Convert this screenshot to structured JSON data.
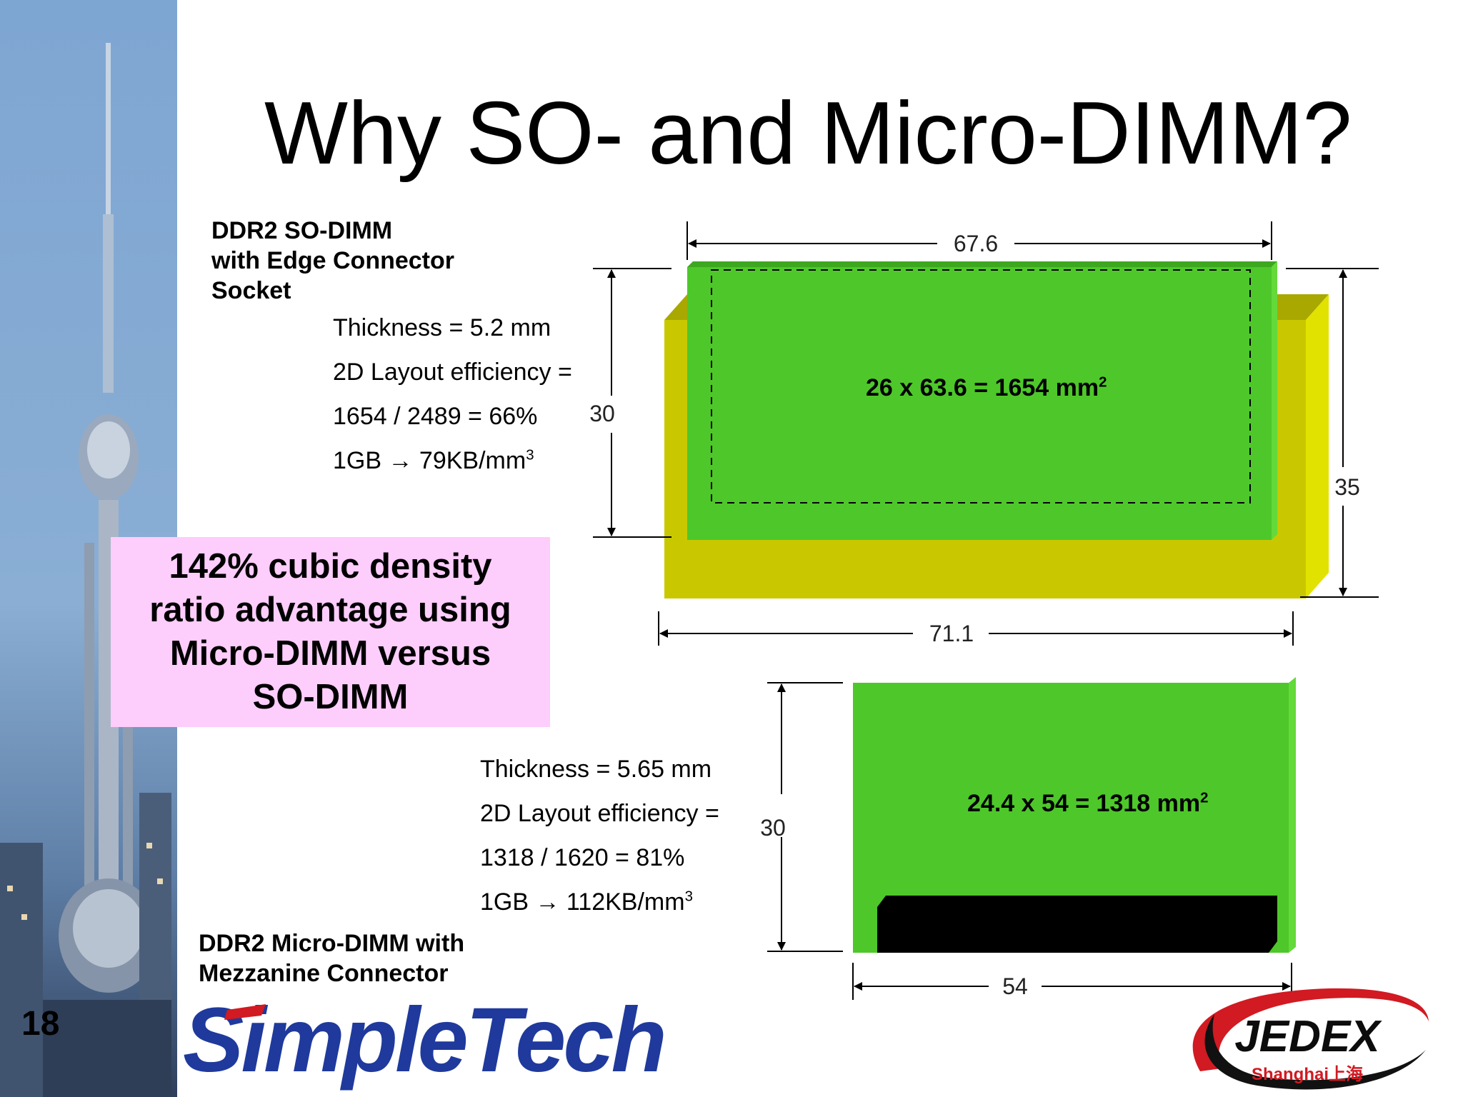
{
  "slide": {
    "title": "Why SO- and Micro-DIMM?",
    "page_number": "18"
  },
  "so_dimm": {
    "label_lines": [
      "DDR2 SO-DIMM",
      "with Edge Connector",
      "Socket"
    ],
    "specs": [
      {
        "text": "Thickness = 5.2 mm",
        "sup": ""
      },
      {
        "text": "2D Layout efficiency =",
        "sup": ""
      },
      {
        "text": "1654 / 2489 = 66%",
        "sup": ""
      },
      {
        "text": "1GB → 79KB/mm",
        "sup": "3"
      }
    ],
    "area_text": "26 x 63.6 = 1654 mm",
    "area_sup": "2",
    "dim_top": "67.6",
    "dim_left": "30",
    "dim_right": "35",
    "dim_bottom": "71.1"
  },
  "micro_dimm": {
    "label_lines": [
      "DDR2 Micro-DIMM with",
      "Mezzanine Connector"
    ],
    "specs": [
      {
        "text": "Thickness = 5.65 mm",
        "sup": ""
      },
      {
        "text": "2D Layout efficiency =",
        "sup": ""
      },
      {
        "text": "1318 / 1620 = 81%",
        "sup": ""
      },
      {
        "text": "1GB → 112KB/mm",
        "sup": "3"
      }
    ],
    "area_text": "24.4 x 54 = 1318 mm",
    "area_sup": "2",
    "dim_left": "30",
    "dim_bottom": "54"
  },
  "callout": {
    "lines": [
      "142% cubic density",
      "ratio advantage using",
      "Micro-DIMM versus",
      "SO-DIMM"
    ]
  },
  "logos": {
    "simpletech": "SimpleTech",
    "jedex_main": "JEDEX",
    "jedex_sub": "Shanghai上海"
  },
  "colors": {
    "pcb_green": "#4ec72a",
    "socket_yellow": "#c9c800",
    "callout_pink": "#fdcdfb",
    "sidebar_blue": "#7ea6d2",
    "logo_blue": "#1f3a9c",
    "logo_red": "#d11a22"
  }
}
